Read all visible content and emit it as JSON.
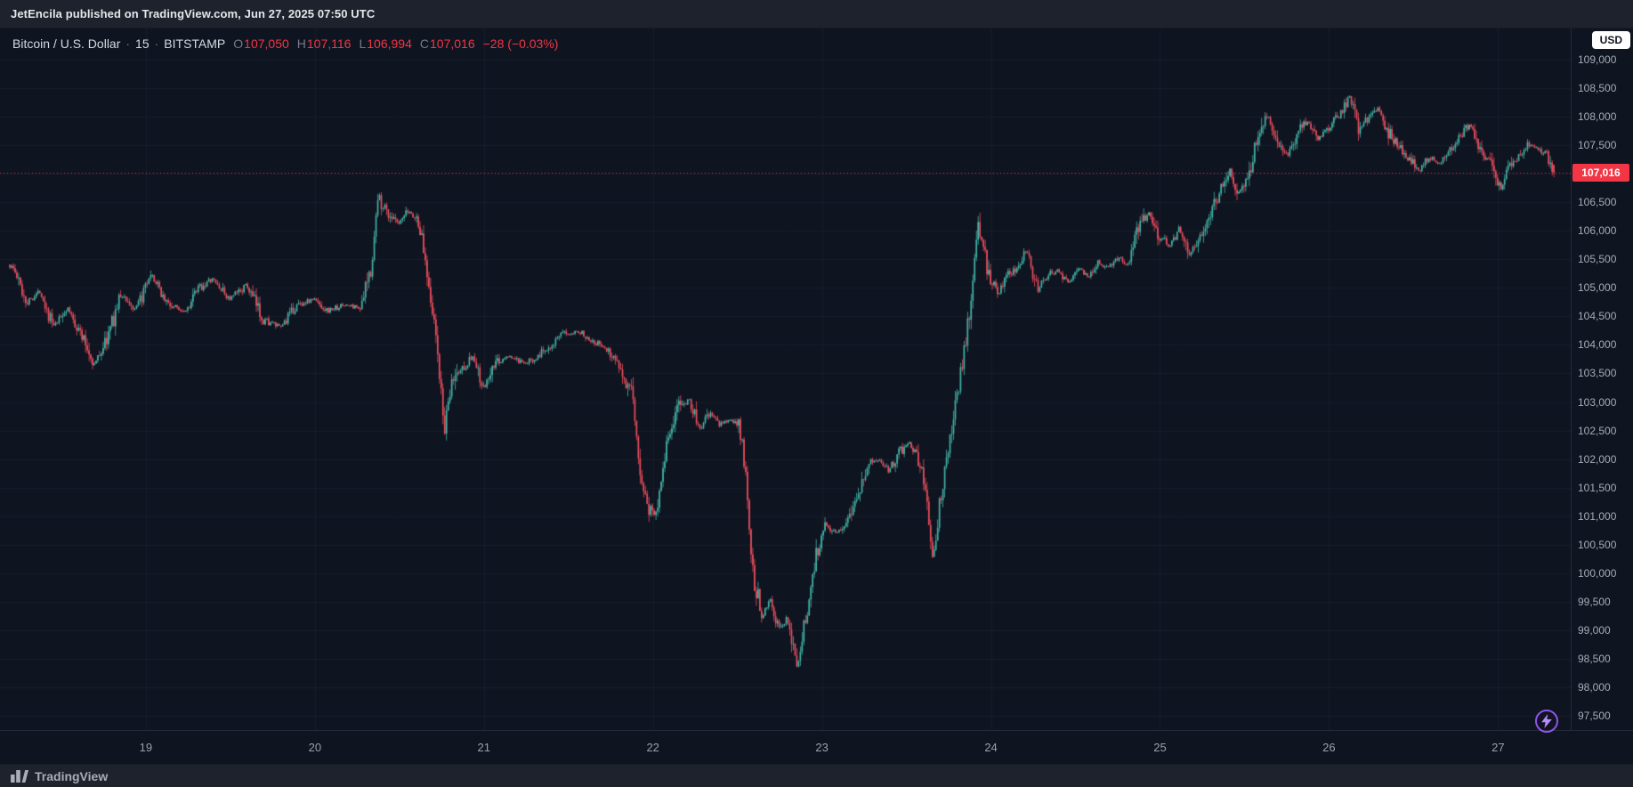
{
  "publish_bar": {
    "text": "JetEncila published on TradingView.com, Jun 27, 2025 07:50 UTC"
  },
  "symbol_bar": {
    "title": "Bitcoin / U.S. Dollar",
    "separator": "·",
    "interval": "15",
    "exchange": "BITSTAMP",
    "ohlc": [
      {
        "label": "O",
        "value": "107,050"
      },
      {
        "label": "H",
        "value": "107,116"
      },
      {
        "label": "L",
        "value": "106,994"
      },
      {
        "label": "C",
        "value": "107,016"
      }
    ],
    "change": "−28 (−0.03%)",
    "currency_button": "USD"
  },
  "price_scale": {
    "labels": [
      "109,000",
      "108,500",
      "108,000",
      "107,500",
      "106,500",
      "106,000",
      "105,500",
      "105,000",
      "104,500",
      "104,000",
      "103,500",
      "103,000",
      "102,500",
      "102,000",
      "101,500",
      "101,000",
      "100,500",
      "100,000",
      "99,500",
      "99,000",
      "98,500",
      "98,000",
      "97,500"
    ],
    "current_price": 107016,
    "current_price_label": "107,016"
  },
  "time_scale": {
    "labels": [
      {
        "text": "19",
        "day": 19
      },
      {
        "text": "20",
        "day": 20
      },
      {
        "text": "21",
        "day": 21
      },
      {
        "text": "22",
        "day": 22
      },
      {
        "text": "23",
        "day": 23
      },
      {
        "text": "24",
        "day": 24
      },
      {
        "text": "25",
        "day": 25
      },
      {
        "text": "26",
        "day": 26
      },
      {
        "text": "27",
        "day": 27
      }
    ]
  },
  "footer": {
    "brand": "TradingView"
  },
  "chart_data": {
    "type": "candlestick",
    "title": "Bitcoin / U.S. Dollar",
    "exchange": "BITSTAMP",
    "interval_minutes": 15,
    "last_ohlc": {
      "open": 107050,
      "high": 107116,
      "low": 106994,
      "close": 107016,
      "change": -28,
      "change_pct": "-0.03%"
    },
    "last_close": 107016,
    "y_domain": [
      97500,
      109000
    ],
    "x_domain_days": [
      18.137,
      27.43
    ],
    "candles_start": 18.19,
    "candles_end": 27.33,
    "x_tick_days": [
      19,
      20,
      21,
      22,
      23,
      24,
      25,
      26,
      27
    ],
    "grid_step_price": 500,
    "colors": {
      "up": "#42b3a6",
      "down": "#eb4d5c",
      "last_price_line": "#f23645",
      "badge": "#f23645",
      "grid": "rgba(150,166,196,0.06)",
      "pane_bg": "#0e1420"
    },
    "price_path": [
      [
        18.14,
        105500
      ],
      [
        18.22,
        105350
      ],
      [
        18.3,
        104750
      ],
      [
        18.38,
        104950
      ],
      [
        18.46,
        104300
      ],
      [
        18.54,
        104650
      ],
      [
        18.62,
        104200
      ],
      [
        18.7,
        103650
      ],
      [
        18.78,
        104150
      ],
      [
        18.86,
        104900
      ],
      [
        18.94,
        104600
      ],
      [
        19.04,
        105200
      ],
      [
        19.14,
        104700
      ],
      [
        19.24,
        104600
      ],
      [
        19.32,
        105000
      ],
      [
        19.4,
        105150
      ],
      [
        19.5,
        104800
      ],
      [
        19.6,
        105050
      ],
      [
        19.7,
        104450
      ],
      [
        19.8,
        104300
      ],
      [
        19.9,
        104700
      ],
      [
        20.0,
        104800
      ],
      [
        20.08,
        104600
      ],
      [
        20.18,
        104700
      ],
      [
        20.28,
        104650
      ],
      [
        20.34,
        105400
      ],
      [
        20.38,
        106600
      ],
      [
        20.44,
        106300
      ],
      [
        20.5,
        106100
      ],
      [
        20.56,
        106350
      ],
      [
        20.62,
        106150
      ],
      [
        20.68,
        105100
      ],
      [
        20.73,
        103900
      ],
      [
        20.77,
        102500
      ],
      [
        20.82,
        103400
      ],
      [
        20.88,
        103600
      ],
      [
        20.94,
        103800
      ],
      [
        21.0,
        103200
      ],
      [
        21.08,
        103700
      ],
      [
        21.16,
        103800
      ],
      [
        21.24,
        103650
      ],
      [
        21.32,
        103800
      ],
      [
        21.4,
        104000
      ],
      [
        21.48,
        104200
      ],
      [
        21.56,
        104250
      ],
      [
        21.64,
        104100
      ],
      [
        21.72,
        103950
      ],
      [
        21.8,
        103700
      ],
      [
        21.88,
        103100
      ],
      [
        21.93,
        101800
      ],
      [
        21.97,
        101200
      ],
      [
        22.02,
        101000
      ],
      [
        22.08,
        102200
      ],
      [
        22.15,
        102900
      ],
      [
        22.22,
        103050
      ],
      [
        22.28,
        102500
      ],
      [
        22.34,
        102800
      ],
      [
        22.4,
        102600
      ],
      [
        22.46,
        102700
      ],
      [
        22.52,
        102550
      ],
      [
        22.56,
        101500
      ],
      [
        22.6,
        99900
      ],
      [
        22.65,
        99300
      ],
      [
        22.7,
        99550
      ],
      [
        22.75,
        98950
      ],
      [
        22.8,
        99250
      ],
      [
        22.86,
        98350
      ],
      [
        22.92,
        99400
      ],
      [
        22.97,
        100300
      ],
      [
        23.02,
        100900
      ],
      [
        23.08,
        100700
      ],
      [
        23.14,
        100850
      ],
      [
        23.2,
        101300
      ],
      [
        23.28,
        101900
      ],
      [
        23.34,
        102000
      ],
      [
        23.4,
        101800
      ],
      [
        23.46,
        102100
      ],
      [
        23.52,
        102300
      ],
      [
        23.57,
        102050
      ],
      [
        23.62,
        101500
      ],
      [
        23.66,
        100100
      ],
      [
        23.7,
        101200
      ],
      [
        23.76,
        102300
      ],
      [
        23.82,
        103400
      ],
      [
        23.88,
        104600
      ],
      [
        23.93,
        106100
      ],
      [
        23.98,
        105400
      ],
      [
        24.04,
        104850
      ],
      [
        24.1,
        105200
      ],
      [
        24.16,
        105350
      ],
      [
        24.22,
        105650
      ],
      [
        24.28,
        105000
      ],
      [
        24.34,
        105250
      ],
      [
        24.4,
        105300
      ],
      [
        24.46,
        105100
      ],
      [
        24.52,
        105350
      ],
      [
        24.58,
        105200
      ],
      [
        24.64,
        105450
      ],
      [
        24.7,
        105350
      ],
      [
        24.76,
        105550
      ],
      [
        24.82,
        105400
      ],
      [
        24.88,
        106100
      ],
      [
        24.94,
        106350
      ],
      [
        25.0,
        105900
      ],
      [
        25.06,
        105750
      ],
      [
        25.12,
        106050
      ],
      [
        25.18,
        105600
      ],
      [
        25.24,
        105900
      ],
      [
        25.3,
        106300
      ],
      [
        25.36,
        106700
      ],
      [
        25.42,
        107100
      ],
      [
        25.46,
        106600
      ],
      [
        25.52,
        106900
      ],
      [
        25.58,
        107600
      ],
      [
        25.64,
        108050
      ],
      [
        25.7,
        107500
      ],
      [
        25.76,
        107300
      ],
      [
        25.82,
        107700
      ],
      [
        25.88,
        107950
      ],
      [
        25.94,
        107600
      ],
      [
        26.0,
        107800
      ],
      [
        26.06,
        108000
      ],
      [
        26.13,
        108350
      ],
      [
        26.18,
        107800
      ],
      [
        26.24,
        108000
      ],
      [
        26.3,
        108150
      ],
      [
        26.36,
        107700
      ],
      [
        26.42,
        107500
      ],
      [
        26.48,
        107250
      ],
      [
        26.54,
        107050
      ],
      [
        26.6,
        107300
      ],
      [
        26.66,
        107200
      ],
      [
        26.72,
        107450
      ],
      [
        26.78,
        107650
      ],
      [
        26.84,
        107900
      ],
      [
        26.9,
        107450
      ],
      [
        26.96,
        107200
      ],
      [
        27.02,
        106700
      ],
      [
        27.06,
        107100
      ],
      [
        27.12,
        107300
      ],
      [
        27.18,
        107500
      ],
      [
        27.24,
        107450
      ],
      [
        27.3,
        107300
      ],
      [
        27.33,
        107016
      ]
    ]
  }
}
